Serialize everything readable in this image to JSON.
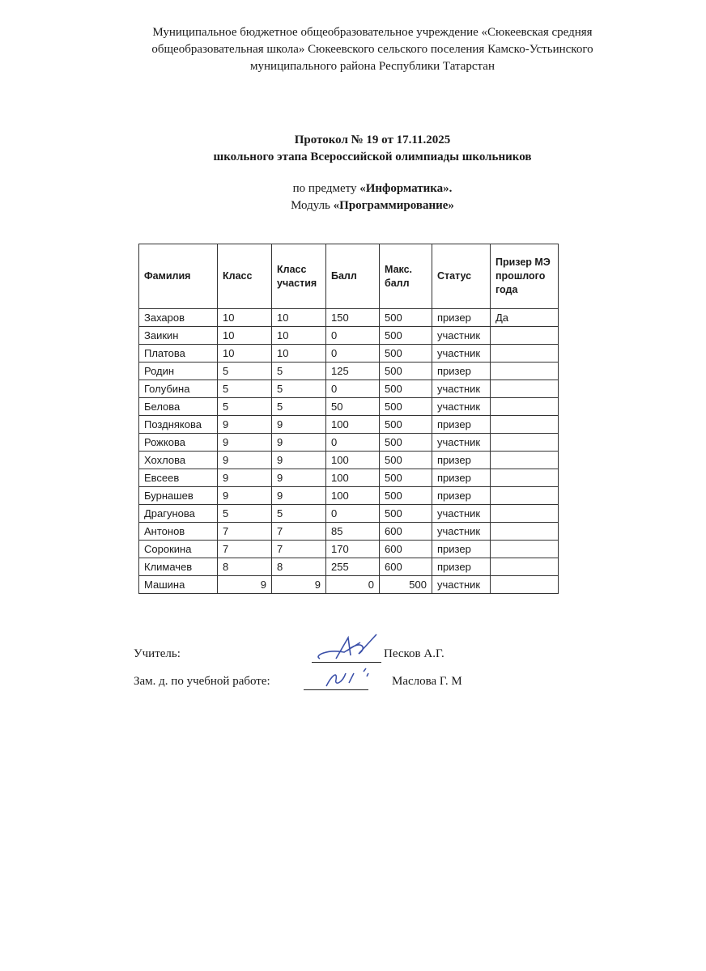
{
  "header": {
    "organization": "Муниципальное бюджетное общеобразовательное учреждение «Сюкеевская средняя общеобразовательная школа» Сюкеевского сельского поселения Камско-Устьинского муниципального района Республики Татарстан",
    "protocol_title": "Протокол № 19 от 17.11.2025",
    "protocol_subtitle": "школьного этапа Всероссийской олимпиады школьников",
    "subject_prefix": "по предмету ",
    "subject": "«Информатика».",
    "module_prefix": "Модуль ",
    "module": "«Программирование»"
  },
  "table": {
    "columns": [
      "Фамилия",
      "Класс",
      "Класс участия",
      "Балл",
      "Макс. балл",
      "Статус",
      "Призер МЭ прошлого года"
    ],
    "rows": [
      [
        "Захаров",
        "10",
        "10",
        "150",
        "500",
        "призер",
        "Да"
      ],
      [
        "Заикин",
        "10",
        "10",
        "0",
        "500",
        "участник",
        ""
      ],
      [
        "Платова",
        "10",
        "10",
        "0",
        "500",
        "участник",
        ""
      ],
      [
        "Родин",
        "5",
        "5",
        "125",
        "500",
        "призер",
        ""
      ],
      [
        "Голубина",
        "5",
        "5",
        "0",
        "500",
        "участник",
        ""
      ],
      [
        "Белова",
        "5",
        "5",
        "50",
        "500",
        "участник",
        ""
      ],
      [
        "Позднякова",
        "9",
        "9",
        "100",
        "500",
        "призер",
        ""
      ],
      [
        "Рожкова",
        "9",
        "9",
        "0",
        "500",
        "участник",
        ""
      ],
      [
        "Хохлова",
        "9",
        "9",
        "100",
        "500",
        "призер",
        ""
      ],
      [
        "Евсеев",
        "9",
        "9",
        "100",
        "500",
        "призер",
        ""
      ],
      [
        "Бурнашев",
        "9",
        "9",
        "100",
        "500",
        "призер",
        ""
      ],
      [
        "Драгунова",
        "5",
        "5",
        "0",
        "500",
        "участник",
        ""
      ],
      [
        "Антонов",
        "7",
        "7",
        "85",
        "600",
        "участник",
        ""
      ],
      [
        "Сорокина",
        "7",
        "7",
        "170",
        "600",
        "призер",
        ""
      ],
      [
        "Климачев",
        "8",
        "8",
        "255",
        "600",
        "призер",
        ""
      ],
      [
        "Машина",
        "9",
        "9",
        "0",
        "500",
        "участник",
        ""
      ]
    ]
  },
  "signatures": {
    "teacher_label": "Учитель:",
    "teacher_name": "Песков А.Г.",
    "deputy_label": "Зам. д. по учебной работе:",
    "deputy_name": "Маслова Г. М",
    "ink_color": "#3a4fa8"
  }
}
